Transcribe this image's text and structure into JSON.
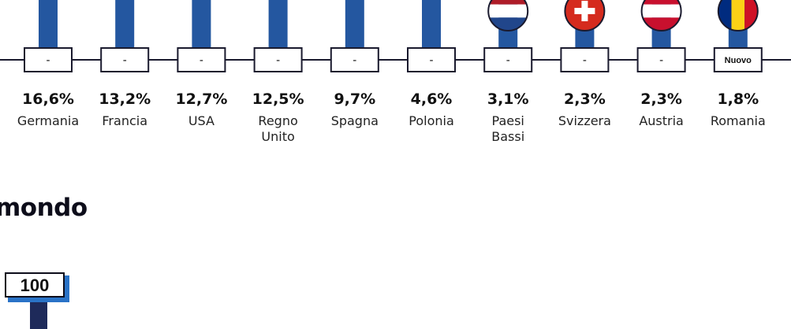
{
  "chart_data": {
    "type": "bar",
    "categories": [
      "Germania",
      "Francia",
      "USA",
      "Regno Unito",
      "Spagna",
      "Polonia",
      "Paesi Bassi",
      "Svizzera",
      "Austria",
      "Romania"
    ],
    "values": [
      16.6,
      13.2,
      12.7,
      12.5,
      9.7,
      4.6,
      3.1,
      2.3,
      2.3,
      1.8
    ],
    "value_labels": [
      "16,6%",
      "13,2%",
      "12,7%",
      "12,5%",
      "9,7%",
      "4,6%",
      "3,1%",
      "2,3%",
      "2,3%",
      "1,8%"
    ],
    "change_labels": [
      "-",
      "-",
      "-",
      "-",
      "-",
      "-",
      "-",
      "-",
      "-",
      "Nuovo"
    ],
    "flags": [
      "",
      "",
      "",
      "",
      "",
      "",
      "netherlands-flag",
      "switzerland-flag",
      "austria-flag",
      "romania-flag"
    ],
    "title": "",
    "xlabel": "",
    "ylabel": "",
    "colors": {
      "bar": "#2457a0",
      "line": "#1a1a2e",
      "value_text": "#111111",
      "label_text": "#222222"
    }
  },
  "section": {
    "title": "mondo",
    "badge_value": "100"
  }
}
